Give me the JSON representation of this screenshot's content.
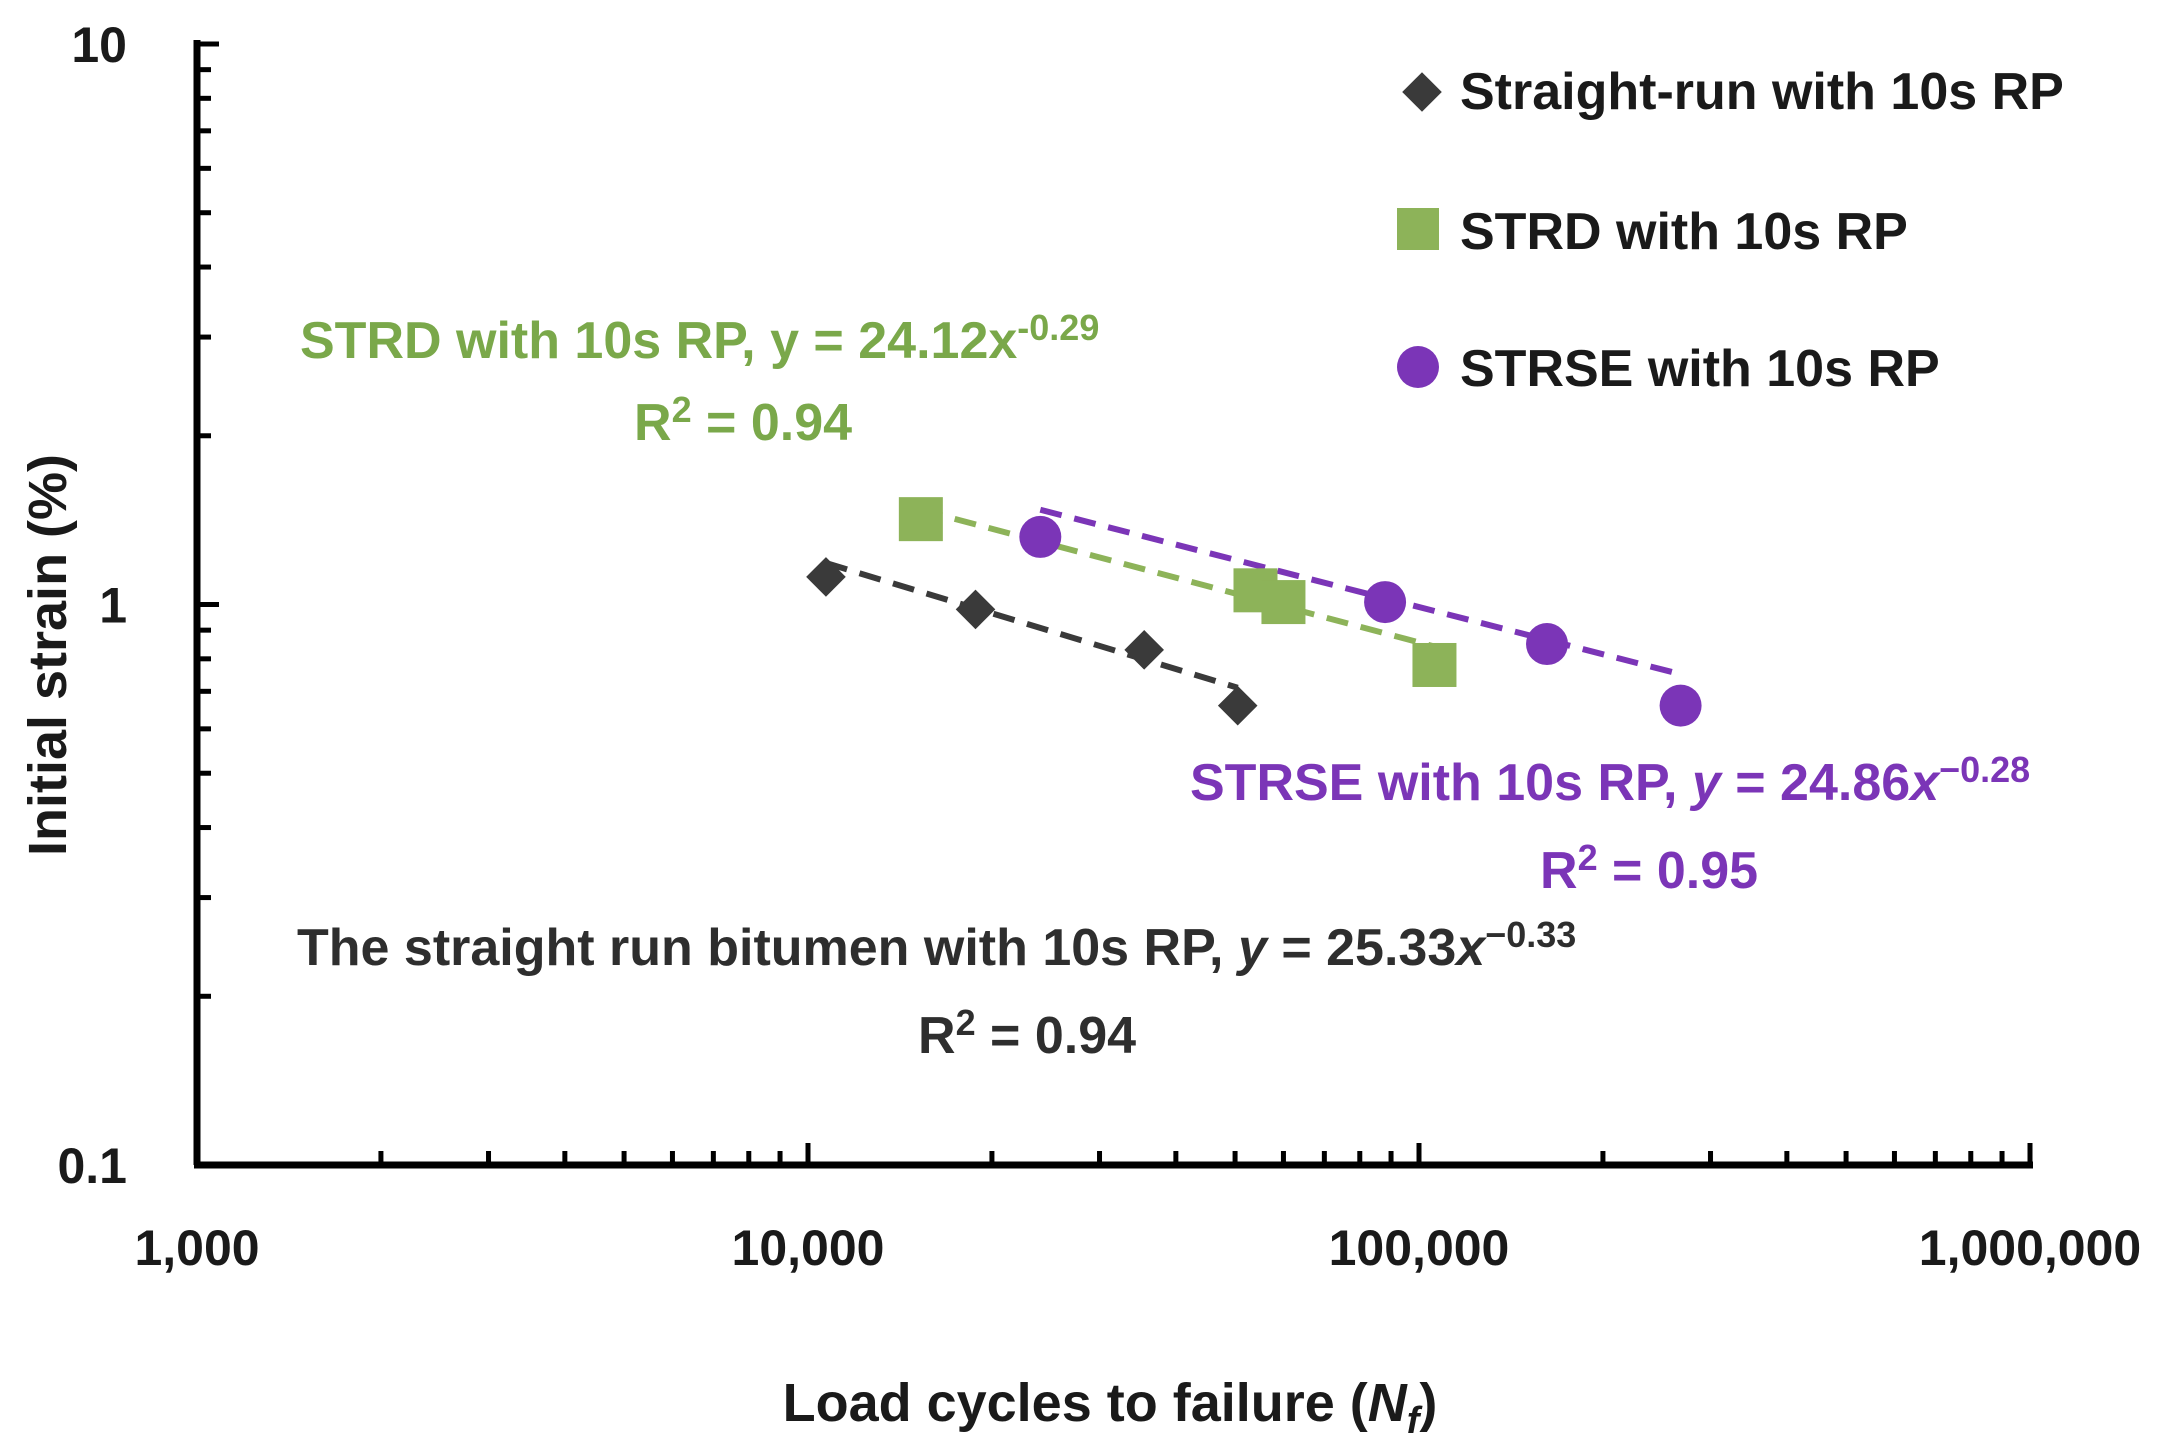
{
  "chart_data": {
    "type": "scatter",
    "xscale": "log",
    "yscale": "log",
    "xlim": [
      1000,
      1000000
    ],
    "ylim": [
      0.1,
      10
    ],
    "xlabel": "Load cycles to failure (",
    "xlabel_var": "N",
    "xlabel_sub": "f",
    "xlabel_close": ")",
    "ylabel": "Initial strain (%)",
    "xticks": [
      {
        "value": 1000,
        "label": "1,000"
      },
      {
        "value": 10000,
        "label": "10,000"
      },
      {
        "value": 100000,
        "label": "100,000"
      },
      {
        "value": 1000000,
        "label": "1,000,000"
      }
    ],
    "yticks": [
      {
        "value": 0.1,
        "label": "0.1"
      },
      {
        "value": 1,
        "label": "1"
      },
      {
        "value": 10,
        "label": "10"
      }
    ],
    "legend_position": "top-right",
    "series": [
      {
        "name": "Straight-run with 10s RP",
        "marker": "diamond",
        "color": "#3a3a3a",
        "points": [
          [
            10700,
            1.12
          ],
          [
            18800,
            0.98
          ],
          [
            35500,
            0.83
          ],
          [
            50500,
            0.66
          ]
        ],
        "trend": {
          "a": 25.33,
          "b": -0.33,
          "x_range": [
            10700,
            50500
          ]
        },
        "equation": {
          "prefix": "The straight run bitumen with 10s RP, ",
          "y": "y",
          "eq": " = 25.33",
          "x": "x",
          "exp": "−0.33",
          "r2_prefix": "R",
          "r2_sup": "2",
          "r2_value": " = 0.94"
        }
      },
      {
        "name": "STRD with 10s RP",
        "marker": "square",
        "color": "#8db359",
        "points": [
          [
            15300,
            1.42
          ],
          [
            54000,
            1.06
          ],
          [
            60000,
            1.01
          ],
          [
            106000,
            0.78
          ]
        ],
        "trend": {
          "a": 24.12,
          "b": -0.29,
          "x_range": [
            15300,
            106000
          ]
        },
        "equation": {
          "prefix": "STRD with 10s RP, ",
          "y": "y",
          "eq": " = 24.12",
          "x": "x",
          "exp": "-0.29",
          "r2_prefix": "R",
          "r2_sup": "2",
          "r2_value": " = 0.94"
        }
      },
      {
        "name": "STRSE with 10s RP",
        "marker": "circle",
        "color": "#7b35b7",
        "points": [
          [
            24000,
            1.32
          ],
          [
            88000,
            1.01
          ],
          [
            162000,
            0.85
          ],
          [
            268000,
            0.66
          ]
        ],
        "trend": {
          "a": 24.86,
          "b": -0.28,
          "x_range": [
            24000,
            268000
          ]
        },
        "equation": {
          "prefix": "STRSE with 10s RP, ",
          "y": "y",
          "eq": " = 24.86",
          "x": "x",
          "exp": "−0.28",
          "r2_prefix": "R",
          "r2_sup": "2",
          "r2_value": " = 0.95"
        }
      }
    ]
  }
}
